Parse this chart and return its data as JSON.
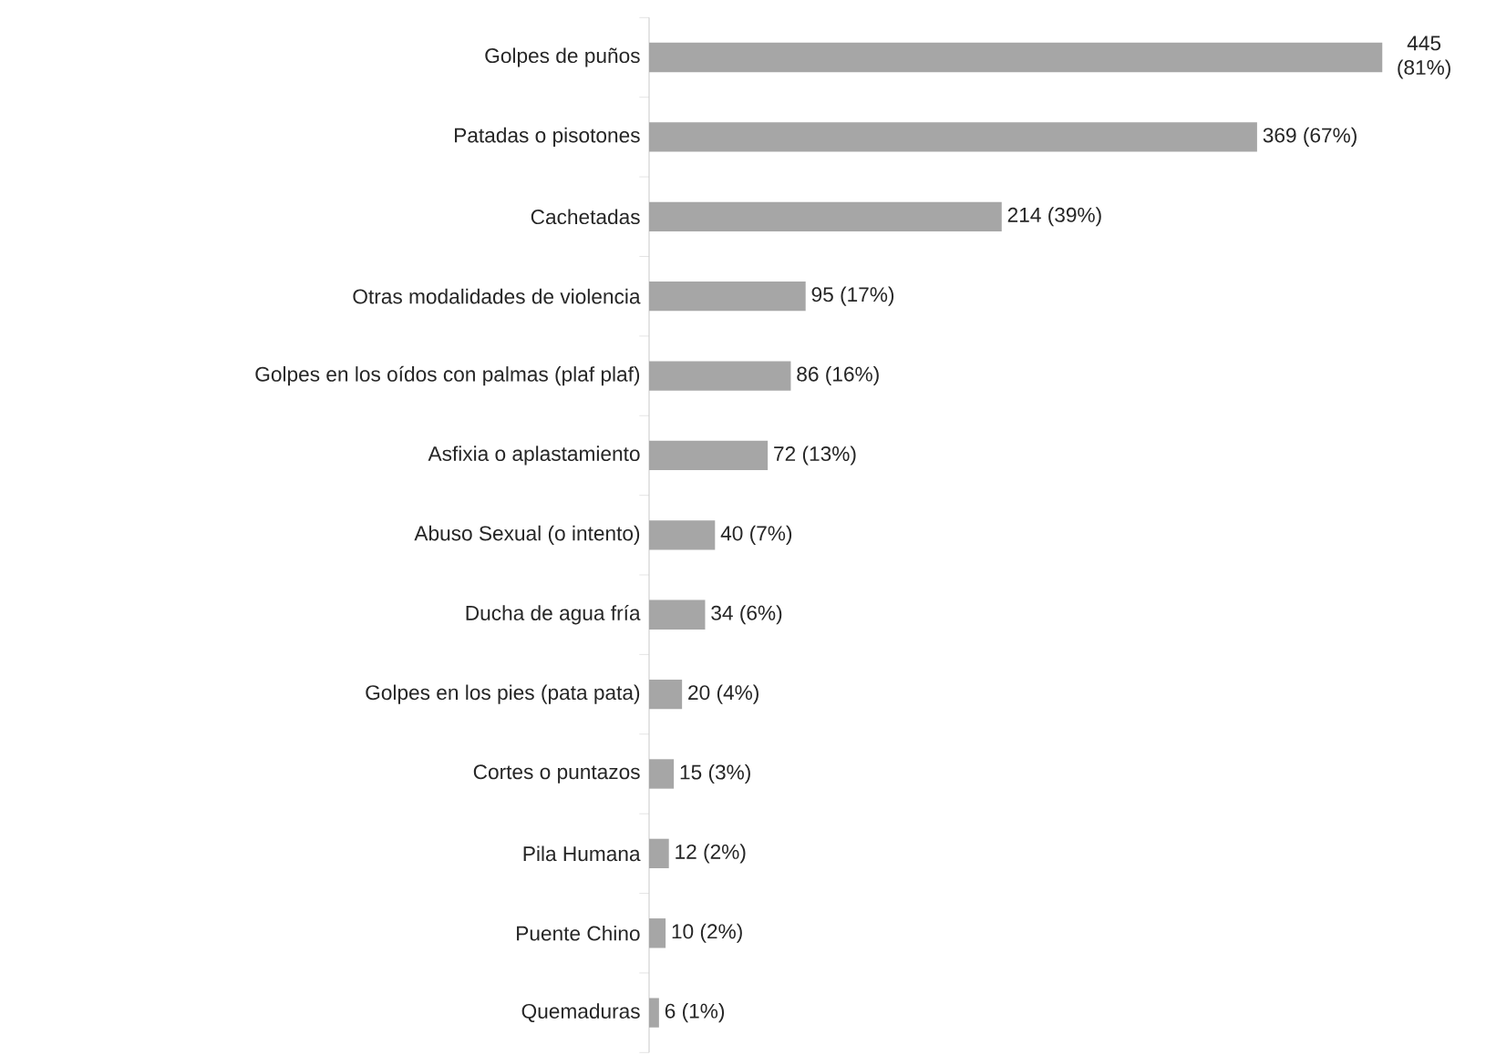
{
  "chart_data": {
    "type": "bar",
    "orientation": "horizontal",
    "categories": [
      "Golpes de puños",
      "Patadas o pisotones",
      "Cachetadas",
      "Otras modalidades de violencia",
      "Golpes en los oídos con palmas (plaf plaf)",
      "Asfixia o aplastamiento",
      "Abuso Sexual (o intento)",
      "Ducha de agua fría",
      "Golpes en los pies (pata pata)",
      "Cortes o puntazos",
      "Pila Humana",
      "Puente Chino",
      "Quemaduras"
    ],
    "values": [
      445,
      369,
      214,
      95,
      86,
      72,
      40,
      34,
      20,
      15,
      12,
      10,
      6
    ],
    "value_labels": [
      "445 (81%)",
      "369 (67%)",
      "214 (39%)",
      "95 (17%)",
      "86 (16%)",
      "72 (13%)",
      "40 (7%)",
      "34 (6%)",
      "20 (4%)",
      "15 (3%)",
      "12 (2%)",
      "10 (2%)",
      "6 (1%)"
    ],
    "color": "#a6a6a6",
    "tick_labels": "y"
  }
}
